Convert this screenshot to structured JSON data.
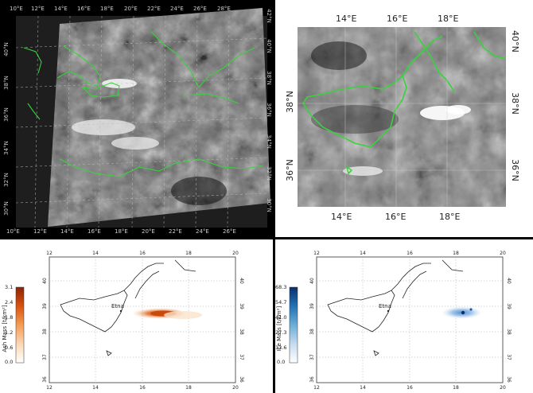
{
  "panel_a": {
    "top_lon_labels": [
      "10°E",
      "12°E",
      "14°E",
      "16°E",
      "18°E",
      "20°E",
      "22°E",
      "24°E",
      "26°E",
      "28°E"
    ],
    "bottom_lon_labels": [
      "10°E",
      "12°E",
      "14°E",
      "16°E",
      "18°E",
      "20°E",
      "22°E",
      "24°E",
      "26°E"
    ],
    "left_lat_labels": [
      "40°N",
      "38°N",
      "36°N",
      "34°N",
      "32°N",
      "30°N"
    ],
    "right_lat_labels": [
      "42°N",
      "40°N",
      "38°N",
      "36°N",
      "34°N",
      "32°N",
      "30°N"
    ]
  },
  "panel_b": {
    "top_lon_labels": [
      "14°E",
      "16°E",
      "18°E"
    ],
    "bottom_lon_labels": [
      "14°E",
      "16°E",
      "18°E"
    ],
    "left_lat_labels": [
      "38°N",
      "36°N"
    ],
    "right_lat_labels": [
      "40°N",
      "38°N",
      "36°N"
    ]
  },
  "panel_c": {
    "colorbar_label": "Ash Mass [t/km²]",
    "colorbar_ticks": [
      "3.1",
      "2.4",
      "1.8",
      "1.2",
      "0.6",
      "0.0"
    ],
    "colorbar_colors": [
      "#ffffff",
      "#fbd7b3",
      "#f59c54",
      "#d9520e",
      "#8b2404"
    ],
    "top_lon_labels": [
      "12",
      "14",
      "16",
      "18",
      "20"
    ],
    "bottom_lon_labels": [
      "12",
      "14",
      "16",
      "18",
      "20"
    ],
    "left_lat_labels": [
      "40",
      "39",
      "38",
      "37",
      "36"
    ],
    "right_lat_labels": [
      "40",
      "39",
      "38",
      "37",
      "36"
    ],
    "place_label": "Etna"
  },
  "panel_d": {
    "colorbar_label": "Ice Mass [t/km²]",
    "colorbar_ticks": [
      "68.3",
      "54.7",
      "41.0",
      "27.3",
      "13.6",
      "0.0"
    ],
    "colorbar_colors": [
      "#ffffff",
      "#c6dbef",
      "#6baed6",
      "#2171b5",
      "#08306b"
    ],
    "top_lon_labels": [
      "12",
      "14",
      "16",
      "18",
      "20"
    ],
    "bottom_lon_labels": [
      "12",
      "14",
      "16",
      "18",
      "20"
    ],
    "left_lat_labels": [
      "40",
      "39",
      "38",
      "37",
      "36"
    ],
    "right_lat_labels": [
      "40",
      "39",
      "38",
      "37",
      "36"
    ],
    "place_label": "Etna"
  },
  "colors": {
    "coastline_satellite": "#39d23c",
    "coastline_map": "#222222",
    "ash": "#d9520e",
    "ice": "#2171b5"
  }
}
